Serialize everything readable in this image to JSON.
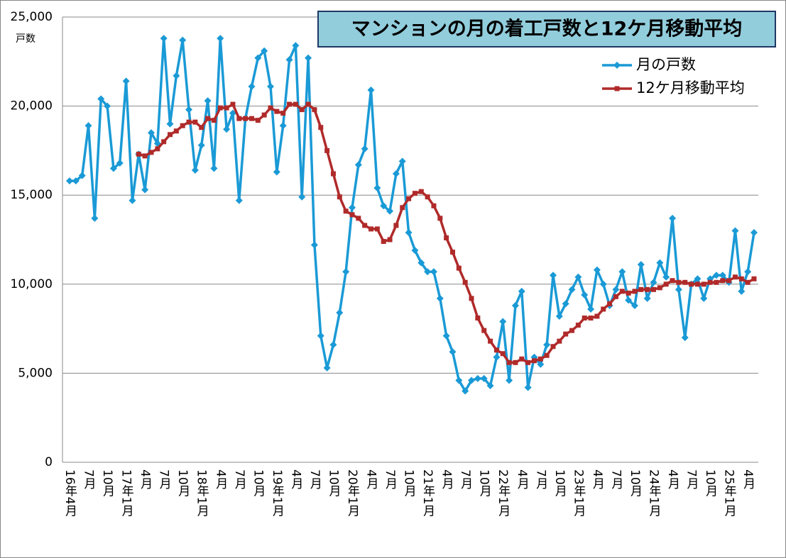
{
  "chart_data": {
    "type": "line",
    "title": "マンションの月の着工戸数と12ケ月移動平均",
    "y_label": "戸数",
    "categories": [
      "16年4月",
      null,
      null,
      "7月",
      null,
      null,
      "10月",
      null,
      null,
      "17年1月",
      null,
      null,
      "4月",
      null,
      null,
      "7月",
      null,
      null,
      "10月",
      null,
      null,
      "18年1月",
      null,
      null,
      "4月",
      null,
      null,
      "7月",
      null,
      null,
      "10月",
      null,
      null,
      "19年1月",
      null,
      null,
      "4月",
      null,
      null,
      "7月",
      null,
      null,
      "10月",
      null,
      null,
      "20年1月",
      null,
      null,
      "4月",
      null,
      null,
      "7月",
      null,
      null,
      "10月",
      null,
      null,
      "21年1月",
      null,
      null,
      "4月",
      null,
      null,
      "7月",
      null,
      null,
      "10月",
      null,
      null,
      "22年1月",
      null,
      null,
      "4月",
      null,
      null,
      "7月",
      null,
      null,
      "10月",
      null,
      null,
      "23年1月",
      null,
      null,
      "4月",
      null,
      null,
      "7月",
      null,
      null,
      "10月",
      null,
      null,
      "24年1月",
      null,
      null,
      "4月",
      null,
      null,
      "7月",
      null,
      null,
      "10月",
      null,
      null,
      "25年1月",
      null,
      null,
      "4月",
      null
    ],
    "series": [
      {
        "name": "月の戸数",
        "color": "#1a9ad6",
        "marker": "diamond",
        "values": [
          15800,
          15800,
          16100,
          18900,
          13700,
          20400,
          20000,
          16500,
          16800,
          21400,
          14700,
          17300,
          15300,
          18500,
          17900,
          23800,
          19000,
          21700,
          23700,
          19800,
          16400,
          17800,
          20300,
          16500,
          23800,
          18700,
          19600,
          14700,
          19300,
          21100,
          22700,
          23100,
          21100,
          16300,
          18900,
          22600,
          23400,
          14900,
          22700,
          12200,
          7100,
          5300,
          6600,
          8400,
          10700,
          14300,
          16700,
          17600,
          20900,
          15400,
          14400,
          14100,
          16200,
          16900,
          12900,
          11900,
          11200,
          10700,
          10700,
          9200,
          7100,
          6200,
          4600,
          4000,
          4600,
          4700,
          4700,
          4300,
          5900,
          7900,
          4600,
          8800,
          9600,
          4200,
          5900,
          5500,
          6600,
          10500,
          8200,
          8900,
          9700,
          10400,
          9400,
          8600,
          10800,
          10000,
          8800,
          9700,
          10700,
          9100,
          8800,
          11100,
          9200,
          10100,
          11200,
          10400,
          13700,
          9700,
          7000,
          10000,
          10300,
          9200,
          10300,
          10500,
          10500,
          10100,
          13000,
          9600,
          10700,
          12900
        ]
      },
      {
        "name": "12ケ月移動平均",
        "color": "#b02a2a",
        "marker": "square",
        "values": [
          null,
          null,
          null,
          null,
          null,
          null,
          null,
          null,
          null,
          null,
          null,
          17300,
          17200,
          17400,
          17600,
          18000,
          18400,
          18600,
          18900,
          19100,
          19100,
          18800,
          19300,
          19200,
          19900,
          19900,
          20100,
          19300,
          19300,
          19300,
          19200,
          19500,
          19900,
          19700,
          19600,
          20100,
          20100,
          19800,
          20100,
          19800,
          18800,
          17500,
          16200,
          14900,
          14100,
          13900,
          13700,
          13300,
          13100,
          13100,
          12400,
          12500,
          13300,
          14300,
          14800,
          15100,
          15200,
          14900,
          14400,
          13700,
          12600,
          11800,
          10900,
          10100,
          9200,
          8100,
          7400,
          6800,
          6300,
          6100,
          5600,
          5600,
          5800,
          5600,
          5700,
          5800,
          6000,
          6500,
          6800,
          7200,
          7400,
          7700,
          8100,
          8100,
          8200,
          8600,
          8900,
          9300,
          9600,
          9500,
          9600,
          9700,
          9700,
          9700,
          9800,
          10000,
          10200,
          10100,
          10100,
          10000,
          10000,
          10000,
          10100,
          10100,
          10200,
          10200,
          10400,
          10300,
          10100,
          10300
        ]
      }
    ],
    "ylim": [
      0,
      25000
    ],
    "yticks": [
      0,
      {
        "value": 5000,
        "label": "5,000"
      },
      {
        "value": 10000,
        "label": "10,000"
      },
      {
        "value": 15000,
        "label": "15,000"
      },
      {
        "value": 20000,
        "label": "20,000"
      },
      {
        "value": 25000,
        "label": "25,000"
      }
    ],
    "grid": true,
    "legend": "top-right"
  }
}
